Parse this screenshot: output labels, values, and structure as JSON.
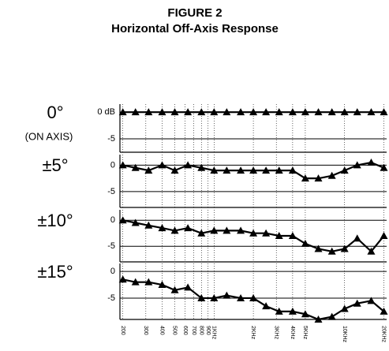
{
  "title": "FIGURE 2",
  "subtitle": "Horizontal Off-Axis Response",
  "chart_data": [
    {
      "type": "line",
      "label": "0°",
      "note": "(ON AXIS)",
      "xlog": true,
      "xlim": [
        190,
        21000
      ],
      "x": [
        200,
        250,
        315,
        400,
        500,
        630,
        800,
        1000,
        1250,
        1600,
        2000,
        2500,
        3150,
        4000,
        5000,
        6300,
        8000,
        10000,
        12500,
        16000,
        20000
      ],
      "values": [
        0,
        0,
        0,
        0,
        0,
        0,
        0,
        0,
        0,
        0,
        0,
        0,
        0,
        0,
        0,
        0,
        0,
        0,
        0,
        0,
        0
      ],
      "ylim": [
        -7.5,
        1.5
      ],
      "yticks": [
        {
          "value": 0,
          "label": "0 dB"
        },
        -5
      ],
      "color": "#000000"
    },
    {
      "type": "line",
      "label": "±5°",
      "xlog": true,
      "xlim": [
        190,
        21000
      ],
      "x": [
        200,
        250,
        315,
        400,
        500,
        630,
        800,
        1000,
        1250,
        1600,
        2000,
        2500,
        3150,
        4000,
        5000,
        6300,
        8000,
        10000,
        12500,
        16000,
        20000
      ],
      "values": [
        0,
        -0.5,
        -1,
        0,
        -1,
        0,
        -0.5,
        -1,
        -1,
        -1,
        -1,
        -1,
        -1,
        -1,
        -2.5,
        -2.5,
        -2,
        -1,
        0,
        0.5,
        -0.5
      ],
      "ylim": [
        -8,
        2
      ],
      "yticks": [
        0,
        -5
      ],
      "color": "#000000"
    },
    {
      "type": "line",
      "label": "±10°",
      "xlog": true,
      "xlim": [
        190,
        21000
      ],
      "x": [
        200,
        250,
        315,
        400,
        500,
        630,
        800,
        1000,
        1250,
        1600,
        2000,
        2500,
        3150,
        4000,
        5000,
        6300,
        8000,
        10000,
        12500,
        16000,
        20000
      ],
      "values": [
        0,
        -0.5,
        -1,
        -1.5,
        -2,
        -1.5,
        -2.5,
        -2,
        -2,
        -2,
        -2.5,
        -2.5,
        -3,
        -3,
        -4.5,
        -5.5,
        -6,
        -5.5,
        -3.5,
        -6,
        -3
      ],
      "ylim": [
        -8,
        2
      ],
      "yticks": [
        0,
        -5
      ],
      "color": "#000000"
    },
    {
      "type": "line",
      "label": "±15°",
      "xlog": true,
      "xlim": [
        190,
        21000
      ],
      "x": [
        200,
        250,
        315,
        400,
        500,
        630,
        800,
        1000,
        1250,
        1600,
        2000,
        2500,
        3150,
        4000,
        5000,
        6300,
        8000,
        10000,
        12500,
        16000,
        20000
      ],
      "values": [
        -1.5,
        -2,
        -2,
        -2.5,
        -3.5,
        -3,
        -5,
        -5,
        -4.5,
        -5,
        -5,
        -6.5,
        -7.5,
        -7.5,
        -8,
        -9,
        -8.5,
        -7,
        -6,
        -5.5,
        -7.5
      ],
      "ylim": [
        -9,
        1.5
      ],
      "yticks": [
        0,
        -5
      ],
      "color": "#000000",
      "xticks": [
        200,
        300,
        400,
        500,
        600,
        700,
        800,
        900,
        {
          "value": 1000,
          "label": "1KHz"
        },
        {
          "value": 2000,
          "label": "2KHz"
        },
        {
          "value": 3000,
          "label": "3KHz"
        },
        {
          "value": 4000,
          "label": "4KHz"
        },
        {
          "value": 5000,
          "label": "5KHz"
        },
        {
          "value": 10000,
          "label": "10KHz"
        },
        {
          "value": 20000,
          "label": "20KHz"
        }
      ]
    }
  ]
}
